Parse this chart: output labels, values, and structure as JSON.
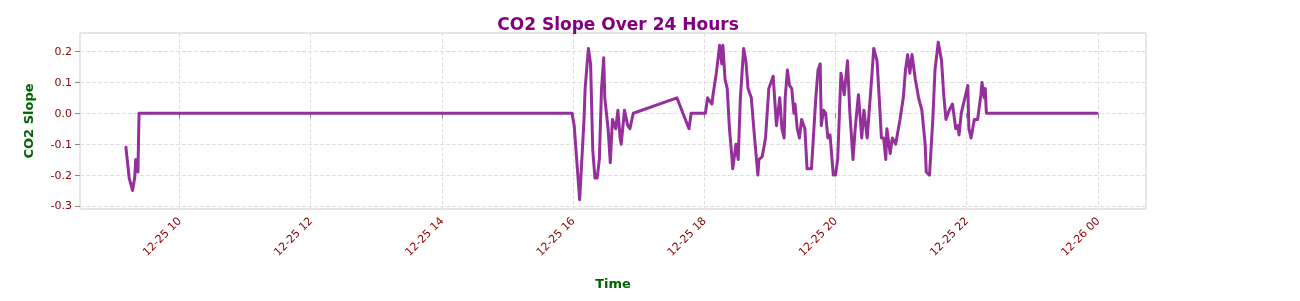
{
  "chart_data": {
    "type": "line",
    "title": "CO2 Slope Over 24 Hours",
    "xlabel": "Time",
    "ylabel": "CO2 Slope",
    "xlim": [
      "--12-25T08:29",
      "--12-26T00:44"
    ],
    "xticks": [
      {
        "value": "--12-25T10:00",
        "label": "12-25 10"
      },
      {
        "value": "--12-25T12:00",
        "label": "12-25 12"
      },
      {
        "value": "--12-25T14:00",
        "label": "12-25 14"
      },
      {
        "value": "--12-25T16:00",
        "label": "12-25 16"
      },
      {
        "value": "--12-25T18:00",
        "label": "12-25 18"
      },
      {
        "value": "--12-25T20:00",
        "label": "12-25 20"
      },
      {
        "value": "--12-25T22:00",
        "label": "12-25 22"
      },
      {
        "value": "--12-26T00:00",
        "label": "12-26 00"
      }
    ],
    "ylim": [
      -0.31,
      0.26
    ],
    "yticks": [
      -0.3,
      -0.2,
      -0.1,
      {
        "value": 0,
        "label": "0.0"
      },
      0.1,
      0.2
    ],
    "grid": true,
    "marker": "none",
    "line_style": "solid",
    "series": [
      {
        "color": "#952f9b",
        "x": [
          "--12-25T09:11",
          "--12-25T09:14",
          "--12-25T09:17",
          "--12-25T09:19",
          "--12-25T09:20",
          "--12-25T09:22",
          "--12-25T09:23",
          "--12-25T15:59",
          "--12-25T16:01",
          "--12-25T16:06",
          "--12-25T16:10",
          "--12-25T16:11",
          "--12-25T16:14",
          "--12-25T16:16",
          "--12-25T16:18",
          "--12-25T16:20",
          "--12-25T16:22",
          "--12-25T16:24",
          "--12-25T16:26",
          "--12-25T16:28",
          "--12-25T16:29",
          "--12-25T16:32",
          "--12-25T16:34",
          "--12-25T16:36",
          "--12-25T16:39",
          "--12-25T16:41",
          "--12-25T16:43",
          "--12-25T16:44",
          "--12-25T16:47",
          "--12-25T16:50",
          "--12-25T16:52",
          "--12-25T16:55",
          "--12-25T17:35",
          "--12-25T17:46",
          "--12-25T17:48",
          "--12-25T18:01",
          "--12-25T18:03",
          "--12-25T18:07",
          "--12-25T18:08",
          "--12-25T18:11",
          "--12-25T18:14",
          "--12-25T18:16",
          "--12-25T18:17",
          "--12-25T18:19",
          "--12-25T18:21",
          "--12-25T18:23",
          "--12-25T18:25",
          "--12-25T18:26",
          "--12-25T18:29",
          "--12-25T18:31",
          "--12-25T18:33",
          "--12-25T18:36",
          "--12-25T18:38",
          "--12-25T18:40",
          "--12-25T18:43",
          "--12-25T18:46",
          "--12-25T18:49",
          "--12-25T18:50",
          "--12-25T18:53",
          "--12-25T18:56",
          "--12-25T18:59",
          "--12-25T19:03",
          "--12-25T19:06",
          "--12-25T19:09",
          "--12-25T19:11",
          "--12-25T19:13",
          "--12-25T19:14",
          "--12-25T19:16",
          "--12-25T19:18",
          "--12-25T19:20",
          "--12-25T19:22",
          "--12-25T19:23",
          "--12-25T19:25",
          "--12-25T19:27",
          "--12-25T19:29",
          "--12-25T19:32",
          "--12-25T19:34",
          "--12-25T19:38",
          "--12-25T19:42",
          "--12-25T19:44",
          "--12-25T19:46",
          "--12-25T19:47",
          "--12-25T19:49",
          "--12-25T19:51",
          "--12-25T19:53",
          "--12-25T19:55",
          "--12-25T19:58",
          "--12-25T20:00",
          "--12-25T20:02",
          "--12-25T20:05",
          "--12-25T20:08",
          "--12-25T20:11",
          "--12-25T20:13",
          "--12-25T20:16",
          "--12-25T20:18",
          "--12-25T20:21",
          "--12-25T20:24",
          "--12-25T20:26",
          "--12-25T20:29",
          "--12-25T20:33",
          "--12-25T20:35",
          "--12-25T20:38",
          "--12-25T20:40",
          "--12-25T20:42",
          "--12-25T20:44",
          "--12-25T20:46",
          "--12-25T20:47",
          "--12-25T20:50",
          "--12-25T20:52",
          "--12-25T20:55",
          "--12-25T20:59",
          "--12-25T21:02",
          "--12-25T21:04",
          "--12-25T21:06",
          "--12-25T21:08",
          "--12-25T21:10",
          "--12-25T21:13",
          "--12-25T21:16",
          "--12-25T21:19",
          "--12-25T21:22",
          "--12-25T21:23",
          "--12-25T21:26",
          "--12-25T21:29",
          "--12-25T21:31",
          "--12-25T21:34",
          "--12-25T21:37",
          "--12-25T21:39",
          "--12-25T21:41",
          "--12-25T21:44",
          "--12-25T21:47",
          "--12-25T21:50",
          "--12-25T21:52",
          "--12-25T21:53",
          "--12-25T21:55",
          "--12-25T21:59",
          "--12-25T22:01",
          "--12-25T22:02",
          "--12-25T22:04",
          "--12-25T22:07",
          "--12-25T22:10",
          "--12-25T22:13",
          "--12-25T22:14",
          "--12-25T22:16",
          "--12-25T22:17",
          "--12-25T22:18",
          "--12-25T23:59"
        ],
        "values": [
          -0.11,
          -0.21,
          -0.25,
          -0.21,
          -0.15,
          -0.19,
          0,
          0,
          -0.04,
          -0.28,
          -0.02,
          0.08,
          0.21,
          0.16,
          -0.12,
          -0.21,
          -0.21,
          -0.15,
          0.08,
          0.18,
          0.05,
          -0.05,
          -0.16,
          -0.02,
          -0.05,
          0.01,
          -0.08,
          -0.1,
          0.01,
          -0.04,
          -0.05,
          0,
          0.05,
          -0.05,
          0,
          0,
          0.05,
          0.03,
          0.06,
          0.13,
          0.22,
          0.16,
          0.22,
          0.11,
          0.08,
          -0.05,
          -0.13,
          -0.18,
          -0.1,
          -0.15,
          0.05,
          0.21,
          0.17,
          0.08,
          0.05,
          -0.08,
          -0.2,
          -0.15,
          -0.14,
          -0.08,
          0.08,
          0.12,
          -0.04,
          0.05,
          -0.05,
          -0.08,
          0.05,
          0.14,
          0.09,
          0.08,
          0,
          0.03,
          -0.05,
          -0.08,
          -0.02,
          -0.05,
          -0.18,
          -0.18,
          0.05,
          0.14,
          0.16,
          -0.04,
          0.01,
          0,
          -0.08,
          -0.07,
          -0.2,
          -0.2,
          -0.15,
          0.13,
          0.06,
          0.17,
          0.01,
          -0.15,
          -0.05,
          0.06,
          -0.08,
          0.01,
          -0.08,
          0.11,
          0.21,
          0.17,
          0.05,
          -0.08,
          -0.08,
          -0.15,
          -0.05,
          -0.13,
          -0.08,
          -0.1,
          -0.02,
          0.05,
          0.14,
          0.19,
          0.13,
          0.19,
          0.11,
          0.05,
          0.01,
          -0.1,
          -0.19,
          -0.2,
          -0.02,
          0.14,
          0.23,
          0.17,
          0.06,
          -0.02,
          0.01,
          0.03,
          -0.05,
          -0.04,
          -0.07,
          0,
          0.06,
          0.09,
          -0.05,
          -0.08,
          -0.02,
          -0.02,
          0.06,
          0.1,
          0.05,
          0.08,
          0,
          0
        ]
      }
    ]
  }
}
